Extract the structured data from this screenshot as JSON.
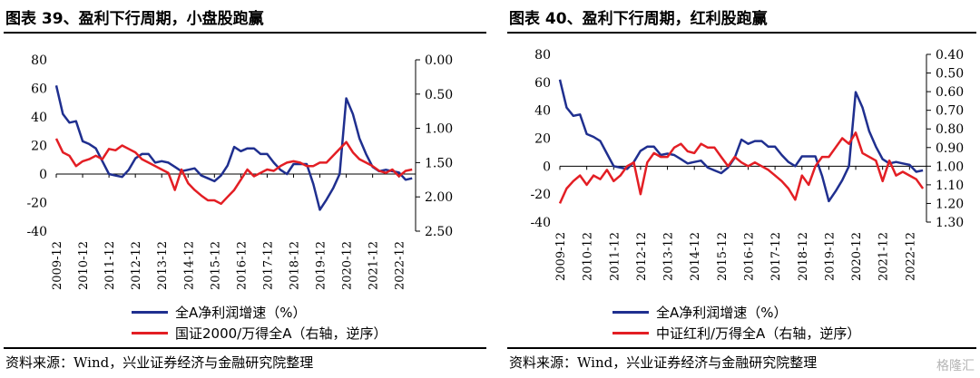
{
  "colors": {
    "blue": "#1f2f8f",
    "red": "#e31e24"
  },
  "panels": [
    {
      "title": "图表 39、盈利下行周期，小盘股跑赢",
      "source": "资料来源：Wind，兴业证券经济与金融研究院整理",
      "legend": [
        "全A净利润增速（%）",
        "国证2000/万得全A（右轴，逆序）"
      ]
    },
    {
      "title": "图表 40、盈利下行周期，红利股跑赢",
      "source": "资料来源：Wind，兴业证券经济与金融研究院整理",
      "legend": [
        "全A净利润增速（%）",
        "中证红利/万得全A（右轴，逆序）"
      ]
    }
  ],
  "watermark": "格隆汇",
  "chart_data": [
    {
      "type": "line",
      "x_ticks": [
        "2009-12",
        "2010-12",
        "2011-12",
        "2012-12",
        "2013-12",
        "2014-12",
        "2015-12",
        "2016-12",
        "2017-12",
        "2018-12",
        "2019-12",
        "2020-12",
        "2021-12",
        "2022-12"
      ],
      "y_left": {
        "ticks": [
          "-40",
          "-20",
          "0",
          "20",
          "40",
          "60",
          "80"
        ],
        "lim": [
          -40,
          80
        ]
      },
      "y_right": {
        "ticks": [
          "0.00",
          "0.50",
          "1.00",
          "1.50",
          "2.00",
          "2.50"
        ],
        "lim": [
          0,
          2.5
        ],
        "inverted": true
      },
      "series": [
        {
          "name": "全A净利润增速（%）",
          "axis": "left",
          "color": "blue",
          "x": [
            2009.92,
            2010.17,
            2010.42,
            2010.67,
            2010.92,
            2011.17,
            2011.42,
            2011.67,
            2011.92,
            2012.17,
            2012.42,
            2012.67,
            2012.92,
            2013.17,
            2013.42,
            2013.67,
            2013.92,
            2014.17,
            2014.42,
            2014.67,
            2014.92,
            2015.17,
            2015.42,
            2015.67,
            2015.92,
            2016.17,
            2016.42,
            2016.67,
            2016.92,
            2017.17,
            2017.42,
            2017.67,
            2017.92,
            2018.17,
            2018.42,
            2018.67,
            2018.92,
            2019.17,
            2019.42,
            2019.67,
            2019.92,
            2020.17,
            2020.42,
            2020.67,
            2020.92,
            2021.17,
            2021.42,
            2021.67,
            2021.92,
            2022.17,
            2022.42,
            2022.67,
            2022.92,
            2023.17,
            2023.42
          ],
          "y": [
            62,
            42,
            36,
            37,
            23,
            21,
            18,
            9,
            0,
            -1,
            -2,
            3,
            11,
            14,
            14,
            8,
            9,
            8,
            5,
            2,
            3,
            4,
            -1,
            -3,
            -5,
            -1,
            6,
            19,
            16,
            18,
            18,
            14,
            14,
            8,
            3,
            0,
            7,
            7,
            7,
            -7,
            -25,
            -18,
            -10,
            0,
            53,
            42,
            25,
            14,
            5,
            2,
            3,
            2,
            1,
            -4,
            -3
          ]
        },
        {
          "name": "国证2000/万得全A（右轴，逆序）",
          "axis": "right",
          "color": "red",
          "x": [
            2009.92,
            2010.17,
            2010.42,
            2010.67,
            2010.92,
            2011.17,
            2011.42,
            2011.67,
            2011.92,
            2012.17,
            2012.42,
            2012.67,
            2012.92,
            2013.17,
            2013.42,
            2013.67,
            2013.92,
            2014.17,
            2014.42,
            2014.67,
            2014.92,
            2015.17,
            2015.42,
            2015.67,
            2015.92,
            2016.17,
            2016.42,
            2016.67,
            2016.92,
            2017.17,
            2017.42,
            2017.67,
            2017.92,
            2018.17,
            2018.42,
            2018.67,
            2018.92,
            2019.17,
            2019.42,
            2019.67,
            2019.92,
            2020.17,
            2020.42,
            2020.67,
            2020.92,
            2021.17,
            2021.42,
            2021.67,
            2021.92,
            2022.17,
            2022.42,
            2022.67,
            2022.92,
            2023.17,
            2023.42
          ],
          "y": [
            1.15,
            1.35,
            1.4,
            1.55,
            1.48,
            1.45,
            1.4,
            1.45,
            1.3,
            1.32,
            1.25,
            1.3,
            1.35,
            1.45,
            1.5,
            1.55,
            1.6,
            1.65,
            1.9,
            1.6,
            1.8,
            1.9,
            1.98,
            2.05,
            2.05,
            2.1,
            2.0,
            1.9,
            1.75,
            1.6,
            1.7,
            1.65,
            1.6,
            1.62,
            1.55,
            1.5,
            1.48,
            1.5,
            1.55,
            1.55,
            1.5,
            1.5,
            1.4,
            1.3,
            1.2,
            1.35,
            1.45,
            1.5,
            1.55,
            1.62,
            1.65,
            1.6,
            1.7,
            1.62,
            1.6
          ]
        }
      ]
    },
    {
      "type": "line",
      "x_ticks": [
        "2009-12",
        "2010-12",
        "2011-12",
        "2012-12",
        "2013-12",
        "2014-12",
        "2015-12",
        "2016-12",
        "2017-12",
        "2018-12",
        "2019-12",
        "2020-12",
        "2021-12",
        "2022-12"
      ],
      "y_left": {
        "ticks": [
          "-40",
          "-20",
          "0",
          "20",
          "40",
          "60",
          "80"
        ],
        "lim": [
          -40,
          80
        ]
      },
      "y_right": {
        "ticks": [
          "0.40",
          "0.50",
          "0.60",
          "0.70",
          "0.80",
          "0.90",
          "1.00",
          "1.10",
          "1.20",
          "1.30"
        ],
        "lim": [
          0.4,
          1.3
        ],
        "inverted": true
      },
      "series": [
        {
          "name": "全A净利润增速（%）",
          "axis": "left",
          "color": "blue",
          "x": [
            2009.92,
            2010.17,
            2010.42,
            2010.67,
            2010.92,
            2011.17,
            2011.42,
            2011.67,
            2011.92,
            2012.17,
            2012.42,
            2012.67,
            2012.92,
            2013.17,
            2013.42,
            2013.67,
            2013.92,
            2014.17,
            2014.42,
            2014.67,
            2014.92,
            2015.17,
            2015.42,
            2015.67,
            2015.92,
            2016.17,
            2016.42,
            2016.67,
            2016.92,
            2017.17,
            2017.42,
            2017.67,
            2017.92,
            2018.17,
            2018.42,
            2018.67,
            2018.92,
            2019.17,
            2019.42,
            2019.67,
            2019.92,
            2020.17,
            2020.42,
            2020.67,
            2020.92,
            2021.17,
            2021.42,
            2021.67,
            2021.92,
            2022.17,
            2022.42,
            2022.67,
            2022.92,
            2023.17,
            2023.42
          ],
          "y": [
            62,
            42,
            36,
            37,
            23,
            21,
            18,
            9,
            0,
            -1,
            -2,
            3,
            11,
            14,
            14,
            8,
            9,
            8,
            5,
            2,
            3,
            4,
            -1,
            -3,
            -5,
            -1,
            6,
            19,
            16,
            18,
            18,
            14,
            14,
            8,
            3,
            0,
            7,
            7,
            7,
            -7,
            -25,
            -18,
            -10,
            0,
            53,
            42,
            25,
            14,
            5,
            2,
            3,
            2,
            1,
            -4,
            -3
          ]
        },
        {
          "name": "中证红利/万得全A（右轴，逆序）",
          "axis": "right",
          "color": "red",
          "x": [
            2009.92,
            2010.17,
            2010.42,
            2010.67,
            2010.92,
            2011.17,
            2011.42,
            2011.67,
            2011.92,
            2012.17,
            2012.42,
            2012.67,
            2012.92,
            2013.17,
            2013.42,
            2013.67,
            2013.92,
            2014.17,
            2014.42,
            2014.67,
            2014.92,
            2015.17,
            2015.42,
            2015.67,
            2015.92,
            2016.17,
            2016.42,
            2016.67,
            2016.92,
            2017.17,
            2017.42,
            2017.67,
            2017.92,
            2018.17,
            2018.42,
            2018.67,
            2018.92,
            2019.17,
            2019.42,
            2019.67,
            2019.92,
            2020.17,
            2020.42,
            2020.67,
            2020.92,
            2021.17,
            2021.42,
            2021.67,
            2021.92,
            2022.17,
            2022.42,
            2022.67,
            2022.92,
            2023.17,
            2023.42
          ],
          "y": [
            1.2,
            1.12,
            1.08,
            1.05,
            1.1,
            1.05,
            1.07,
            1.02,
            1.08,
            1.05,
            1.0,
            0.98,
            1.15,
            0.98,
            0.93,
            0.95,
            0.95,
            0.9,
            0.88,
            0.92,
            0.93,
            0.88,
            0.9,
            0.9,
            0.95,
            1.0,
            0.95,
            0.98,
            1.0,
            0.98,
            1.0,
            1.02,
            1.05,
            1.08,
            1.12,
            1.18,
            1.05,
            1.1,
            1.0,
            0.95,
            0.95,
            0.9,
            0.85,
            0.88,
            0.82,
            0.93,
            0.95,
            0.97,
            1.08,
            0.97,
            1.05,
            1.03,
            1.05,
            1.07,
            1.12
          ]
        }
      ]
    }
  ]
}
